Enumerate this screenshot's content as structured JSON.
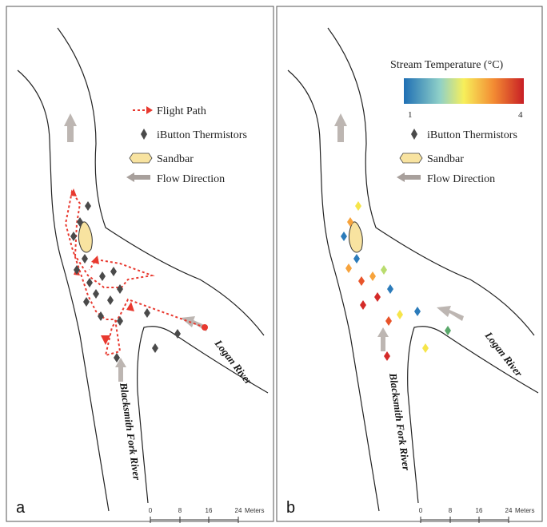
{
  "panels": {
    "a": {
      "letter": "a",
      "legend": {
        "flight_path": "Flight Path",
        "thermistors": "iButton Thermistors",
        "sandbar": "Sandbar",
        "flow": "Flow Direction"
      },
      "rivers": {
        "logan": "Logan River",
        "blacksmith": "Blacksmith Fork River"
      },
      "scale": {
        "ticks": [
          "0",
          "8",
          "16",
          "24"
        ],
        "unit": "Meters"
      }
    },
    "b": {
      "letter": "b",
      "colorbar": {
        "title": "Stream Temperature  (°C)",
        "min_label": "1",
        "max_label": "4",
        "min": 1,
        "max": 4
      },
      "legend": {
        "thermistors": "iButton Thermistors",
        "sandbar": "Sandbar",
        "flow": "Flow Direction"
      },
      "rivers": {
        "logan": "Logan River",
        "blacksmith": "Blacksmith Fork River"
      },
      "scale": {
        "ticks": [
          "0",
          "8",
          "16",
          "24"
        ],
        "unit": "Meters"
      }
    }
  },
  "colors": {
    "flight_path": "#e8392f",
    "thermistor_a": "#4a4a4a",
    "sandbar_fill": "#f8e3a0",
    "sandbar_stroke": "#333333",
    "flow_arrow": "#bdb6b2",
    "river_bank": "#222222",
    "panel_border": "#555555"
  },
  "temperature_colors": [
    "#2b7bba",
    "#5ab4c8",
    "#b9dc6e",
    "#f6e54a",
    "#f7a33c",
    "#e8542a",
    "#d42a28"
  ]
}
